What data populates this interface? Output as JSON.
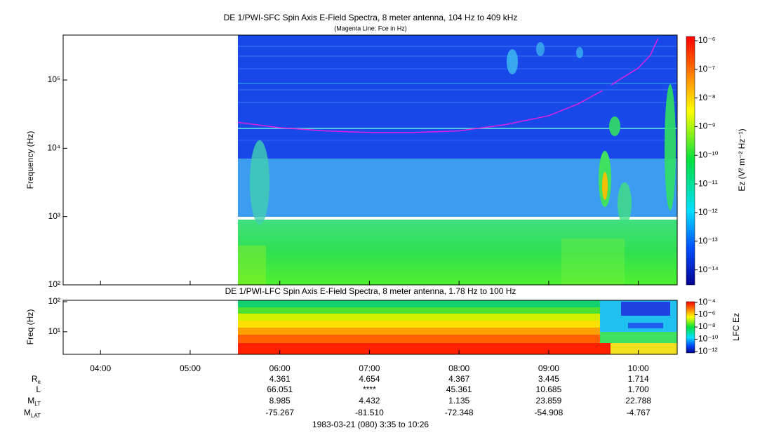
{
  "chart_data": [
    {
      "type": "spectrogram",
      "title": "DE 1/PWI-SFC  Spin Axis E-Field Spectra, 8 meter antenna, 104 Hz to 409 kHz",
      "subtitle": "(Magenta Line: Fce in Hz)",
      "y_label": "Frequency (Hz)",
      "y_log": true,
      "xlim": [
        "03:35",
        "10:26"
      ],
      "ylim": [
        100,
        409000
      ],
      "yticks": [
        {
          "value": 100,
          "label": "10²"
        },
        {
          "value": 1000,
          "label": "10³"
        },
        {
          "value": 10000,
          "label": "10⁴"
        },
        {
          "value": 100000,
          "label": "10⁵"
        }
      ],
      "colorbar_label": "Ez (V² m⁻² Hz⁻¹)",
      "zlim": [
        3e-15,
        1.4e-06
      ],
      "zticks": [
        {
          "value": 1e-06,
          "label": "10⁻⁶"
        },
        {
          "value": 1e-07,
          "label": "10⁻⁷"
        },
        {
          "value": 1e-08,
          "label": "10⁻⁸"
        },
        {
          "value": 1e-09,
          "label": "10⁻⁹"
        },
        {
          "value": 1e-10,
          "label": "10⁻¹⁰"
        },
        {
          "value": 1e-11,
          "label": "10⁻¹¹"
        },
        {
          "value": 1e-12,
          "label": "10⁻¹²"
        },
        {
          "value": 1e-13,
          "label": "10⁻¹³"
        },
        {
          "value": 1e-14,
          "label": "10⁻¹⁴"
        }
      ],
      "series": [
        {
          "name": "Fce",
          "color": "#e020e0",
          "x": [
            "05:32",
            "06:00",
            "06:30",
            "07:00",
            "07:30",
            "08:00",
            "08:30",
            "09:00",
            "09:20",
            "09:36",
            "09:39",
            "09:42",
            "09:50",
            "10:00",
            "10:08",
            "10:13"
          ],
          "values": [
            24000,
            20000,
            18000,
            17000,
            17000,
            18000,
            22000,
            30000,
            45000,
            70000,
            null,
            85000,
            110000,
            150000,
            230000,
            400000
          ]
        }
      ]
    },
    {
      "type": "spectrogram",
      "title": "DE 1/PWI-LFC  Spin Axis E-Field Spectra, 8 meter antenna, 1.78 Hz to 100 Hz",
      "y_label": "Freq (Hz)",
      "y_log": true,
      "xlim": [
        "03:35",
        "10:26"
      ],
      "ylim": [
        1.78,
        100
      ],
      "yticks": [
        {
          "value": 10,
          "label": "10¹"
        },
        {
          "value": 100,
          "label": "10²"
        }
      ],
      "xticks": [
        "04:00",
        "05:00",
        "06:00",
        "07:00",
        "08:00",
        "09:00",
        "10:00"
      ],
      "colorbar_label": "LFC Ez",
      "zlim": [
        6e-13,
        0.00013
      ],
      "zticks": [
        {
          "value": 0.0001,
          "label": "10⁻⁴"
        },
        {
          "value": 1e-06,
          "label": "10⁻⁶"
        },
        {
          "value": 1e-08,
          "label": "10⁻⁸"
        },
        {
          "value": 1e-10,
          "label": "10⁻¹⁰"
        },
        {
          "value": 1e-12,
          "label": "10⁻¹²"
        }
      ]
    }
  ],
  "ephemeris": {
    "columns": [
      "06:00",
      "07:00",
      "08:00",
      "09:00",
      "10:00"
    ],
    "rows": [
      {
        "name": "R",
        "subscript": "e",
        "values": [
          "4.361",
          "4.654",
          "4.367",
          "3.445",
          "1.714"
        ]
      },
      {
        "name": "L",
        "values": [
          "66.051",
          "****",
          "45.361",
          "10.685",
          "1.700"
        ]
      },
      {
        "name": "M",
        "subscript": "LT",
        "values": [
          "8.985",
          "4.432",
          "1.135",
          "23.859",
          "22.788"
        ]
      },
      {
        "name": "M",
        "subscript": "LAT",
        "values": [
          "-75.267",
          "-81.510",
          "-72.348",
          "-54.908",
          "-4.767"
        ]
      }
    ]
  },
  "footer": "1983-03-21 (080) 3:35 to 10:26"
}
